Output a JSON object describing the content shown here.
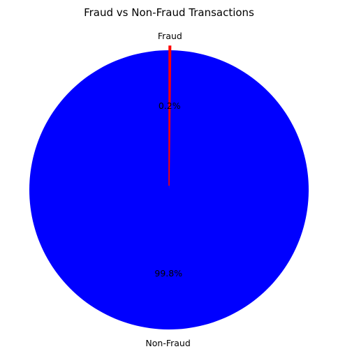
{
  "chart_data": {
    "type": "pie",
    "title": "Fraud vs Non-Fraud Transactions",
    "categories": [
      "Non-Fraud",
      "Fraud"
    ],
    "values": [
      99.8,
      0.2
    ],
    "percent_labels": [
      "99.8%",
      "0.2%"
    ],
    "colors": [
      "#0000ff",
      "#ff0000"
    ],
    "legend": "none"
  }
}
